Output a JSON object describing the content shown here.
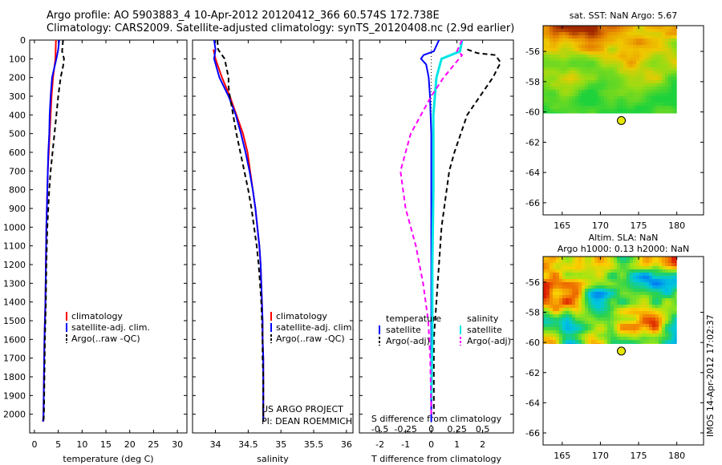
{
  "header": {
    "title_line1": "Argo profile: AO 5903883_4 10-Apr-2012 20120412_366 60.574S 172.738E",
    "title_line2": "Climatology: CARS2009. Satellite-adjusted climatology: synTS_20120408.nc (2.9d earlier)"
  },
  "side_stamp": "IMOS 14-Apr-2012 17:02:37",
  "colors": {
    "climatology": "#ff0000",
    "satellite": "#0000ff",
    "argo": "#000000",
    "salinity_satellite": "#00e5e5",
    "salinity_argo": "#ff00ff",
    "argo_marker": "#e6e600"
  },
  "chart_data": [
    {
      "id": "temperature",
      "type": "line",
      "xlabel": "temperature (deg C)",
      "ylabel": "",
      "xlim": [
        -1,
        32
      ],
      "ylim": [
        2100,
        0
      ],
      "xticks": [
        0,
        5,
        10,
        15,
        20,
        25,
        30
      ],
      "yticks": [
        0,
        100,
        200,
        300,
        400,
        500,
        600,
        700,
        800,
        900,
        1000,
        1100,
        1200,
        1300,
        1400,
        1500,
        1600,
        1700,
        1800,
        1900,
        2000
      ],
      "legend": [
        "climatology",
        "satellite-adj. clim.",
        "Argo(..raw -QC)"
      ],
      "series": [
        {
          "name": "climatology",
          "points": [
            [
              4.5,
              0
            ],
            [
              4.4,
              100
            ],
            [
              3.9,
              200
            ],
            [
              3.6,
              300
            ],
            [
              3.4,
              400
            ],
            [
              3.2,
              500
            ],
            [
              3.0,
              600
            ],
            [
              2.8,
              700
            ],
            [
              2.7,
              800
            ],
            [
              2.6,
              900
            ],
            [
              2.5,
              1000
            ],
            [
              2.4,
              1200
            ],
            [
              2.3,
              1400
            ],
            [
              2.1,
              1600
            ],
            [
              2.0,
              1800
            ],
            [
              1.9,
              2000
            ],
            [
              1.8,
              2040
            ]
          ]
        },
        {
          "name": "satellite-adj. clim.",
          "points": [
            [
              5.2,
              0
            ],
            [
              5.0,
              50
            ],
            [
              4.6,
              100
            ],
            [
              3.7,
              200
            ],
            [
              3.4,
              300
            ],
            [
              3.2,
              400
            ],
            [
              3.1,
              500
            ],
            [
              2.9,
              600
            ],
            [
              2.8,
              700
            ],
            [
              2.7,
              800
            ],
            [
              2.6,
              900
            ],
            [
              2.5,
              1000
            ],
            [
              2.4,
              1200
            ],
            [
              2.3,
              1400
            ],
            [
              2.1,
              1600
            ],
            [
              2.0,
              1800
            ],
            [
              1.9,
              2000
            ],
            [
              1.8,
              2040
            ]
          ]
        },
        {
          "name": "Argo(..raw -QC)",
          "points": [
            [
              6.0,
              0
            ],
            [
              5.8,
              60
            ],
            [
              6.2,
              100
            ],
            [
              6.0,
              140
            ],
            [
              5.5,
              200
            ],
            [
              5.0,
              300
            ],
            [
              4.6,
              400
            ],
            [
              4.2,
              500
            ],
            [
              3.8,
              600
            ],
            [
              3.4,
              700
            ],
            [
              3.1,
              800
            ],
            [
              2.9,
              900
            ],
            [
              2.7,
              1000
            ],
            [
              2.5,
              1200
            ],
            [
              2.4,
              1400
            ],
            [
              2.2,
              1600
            ],
            [
              2.1,
              1800
            ],
            [
              2.0,
              2000
            ],
            [
              1.9,
              2040
            ]
          ]
        }
      ]
    },
    {
      "id": "salinity",
      "type": "line",
      "xlabel": "salinity",
      "ylabel": "",
      "xlim": [
        33.65,
        36.1
      ],
      "ylim": [
        2100,
        0
      ],
      "xticks": [
        34,
        34.5,
        35,
        35.5,
        36
      ],
      "legend": [
        "climatology",
        "satellite-adj. clim.",
        "Argo(..raw -QC)"
      ],
      "annotations": [
        "US ARGO PROJECT",
        "PI: DEAN ROEMMICH"
      ],
      "series": [
        {
          "name": "climatology",
          "points": [
            [
              33.97,
              50
            ],
            [
              34.0,
              100
            ],
            [
              34.1,
              200
            ],
            [
              34.22,
              300
            ],
            [
              34.32,
              400
            ],
            [
              34.42,
              500
            ],
            [
              34.49,
              600
            ],
            [
              34.53,
              700
            ],
            [
              34.57,
              800
            ],
            [
              34.61,
              900
            ],
            [
              34.64,
              1000
            ],
            [
              34.67,
              1100
            ],
            [
              34.69,
              1200
            ],
            [
              34.7,
              1300
            ],
            [
              34.71,
              1400
            ],
            [
              34.72,
              1500
            ],
            [
              34.72,
              1600
            ],
            [
              34.73,
              1700
            ],
            [
              34.73,
              1800
            ],
            [
              34.73,
              1900
            ],
            [
              34.73,
              2040
            ]
          ]
        },
        {
          "name": "satellite-adj. clim.",
          "points": [
            [
              33.98,
              0
            ],
            [
              34.0,
              50
            ],
            [
              33.98,
              100
            ],
            [
              34.06,
              200
            ],
            [
              34.2,
              300
            ],
            [
              34.31,
              400
            ],
            [
              34.39,
              500
            ],
            [
              34.46,
              600
            ],
            [
              34.52,
              700
            ],
            [
              34.57,
              800
            ],
            [
              34.61,
              900
            ],
            [
              34.64,
              1000
            ],
            [
              34.67,
              1100
            ],
            [
              34.69,
              1200
            ],
            [
              34.7,
              1300
            ],
            [
              34.71,
              1400
            ],
            [
              34.72,
              1500
            ],
            [
              34.72,
              1600
            ],
            [
              34.73,
              1700
            ],
            [
              34.73,
              1800
            ],
            [
              34.73,
              1900
            ],
            [
              34.73,
              2040
            ]
          ]
        },
        {
          "name": "Argo(..raw -QC)",
          "points": [
            [
              34.03,
              0
            ],
            [
              34.04,
              50
            ],
            [
              34.14,
              100
            ],
            [
              34.2,
              200
            ],
            [
              34.2,
              250
            ],
            [
              34.22,
              300
            ],
            [
              34.27,
              400
            ],
            [
              34.32,
              500
            ],
            [
              34.38,
              600
            ],
            [
              34.44,
              700
            ],
            [
              34.5,
              800
            ],
            [
              34.55,
              900
            ],
            [
              34.59,
              1000
            ],
            [
              34.63,
              1100
            ],
            [
              34.66,
              1200
            ],
            [
              34.68,
              1300
            ],
            [
              34.7,
              1400
            ],
            [
              34.71,
              1500
            ],
            [
              34.72,
              1600
            ],
            [
              34.72,
              1700
            ],
            [
              34.73,
              1800
            ],
            [
              34.73,
              1900
            ],
            [
              34.73,
              2040
            ]
          ]
        }
      ]
    },
    {
      "id": "difference",
      "type": "line",
      "xlabel": "T difference from climatology",
      "xlabel_top": "S difference from climatology",
      "ylabel": "",
      "xlim": [
        -2.8,
        3.2
      ],
      "ylim": [
        2100,
        0
      ],
      "xticks": [
        -2,
        -1,
        0,
        1,
        2
      ],
      "xticks_top": [
        -0.5,
        -0.25,
        0,
        0.25,
        0.5
      ],
      "legend_left_heading": "temperature",
      "legend_right_heading": "salinity",
      "legend": [
        "satellite",
        "Argo(-adj)",
        "satellite",
        "Argo(-adj)"
      ],
      "series": [
        {
          "name": "temperature satellite",
          "points": [
            [
              0.3,
              0
            ],
            [
              0.1,
              60
            ],
            [
              -0.3,
              80
            ],
            [
              -0.4,
              100
            ],
            [
              -0.2,
              130
            ],
            [
              -0.1,
              200
            ],
            [
              -0.05,
              300
            ],
            [
              0,
              500
            ],
            [
              0,
              1000
            ],
            [
              0,
              2040
            ]
          ]
        },
        {
          "name": "temperature Argo(-adj)",
          "points": [
            [
              1.4,
              50
            ],
            [
              1.8,
              70
            ],
            [
              2.5,
              80
            ],
            [
              2.7,
              120
            ],
            [
              2.4,
              200
            ],
            [
              1.9,
              300
            ],
            [
              1.4,
              400
            ],
            [
              0.9,
              600
            ],
            [
              0.7,
              700
            ],
            [
              0.6,
              800
            ],
            [
              0.4,
              1000
            ],
            [
              0.3,
              1200
            ],
            [
              0.2,
              1400
            ],
            [
              0.1,
              1600
            ],
            [
              0.1,
              2000
            ]
          ]
        },
        {
          "name": "salinity satellite",
          "points": [
            [
              0.3,
              0
            ],
            [
              0.28,
              60
            ],
            [
              0.1,
              100
            ],
            [
              0.05,
              200
            ],
            [
              0.02,
              400
            ],
            [
              0.02,
              800
            ],
            [
              0.01,
              1200
            ],
            [
              0.01,
              1600
            ],
            [
              0.0,
              1900
            ],
            [
              0.0,
              1920
            ]
          ]
        },
        {
          "name": "salinity Argo(-adj)",
          "points": [
            [
              0.3,
              0
            ],
            [
              0.25,
              60
            ],
            [
              0.3,
              80
            ],
            [
              0.12,
              200
            ],
            [
              0.0,
              300
            ],
            [
              -0.2,
              500
            ],
            [
              -0.3,
              700
            ],
            [
              -0.25,
              900
            ],
            [
              -0.15,
              1100
            ],
            [
              -0.08,
              1300
            ],
            [
              -0.03,
              1500
            ],
            [
              -0.01,
              1700
            ],
            [
              0,
              2000
            ]
          ]
        }
      ]
    },
    {
      "id": "sst_map",
      "type": "heatmap",
      "title": "sat. SST: NaN Argo: 5.67",
      "xlim": [
        162.5,
        183.5
      ],
      "ylim": [
        -66.8,
        -54.3
      ],
      "xticks": [
        165,
        170,
        175,
        180
      ],
      "yticks": [
        -56,
        -58,
        -60,
        -62,
        -64,
        -66
      ],
      "field_extent": {
        "lon": [
          162.5,
          180
        ],
        "lat": [
          -60.1,
          -54.3
        ]
      },
      "argo_position": {
        "lon": 172.74,
        "lat": -60.57
      }
    },
    {
      "id": "sla_map",
      "type": "heatmap",
      "title_line1": "Altim. SLA: NaN",
      "title_line2": "Argo h1000: 0.13 h2000: NaN",
      "xlim": [
        162.5,
        183.5
      ],
      "ylim": [
        -66.8,
        -54.3
      ],
      "xticks": [
        165,
        170,
        175,
        180
      ],
      "yticks": [
        -56,
        -58,
        -60,
        -62,
        -64,
        -66
      ],
      "field_extent": {
        "lon": [
          162.5,
          180
        ],
        "lat": [
          -60.1,
          -54.3
        ]
      },
      "argo_position": {
        "lon": 172.74,
        "lat": -60.57
      }
    }
  ]
}
